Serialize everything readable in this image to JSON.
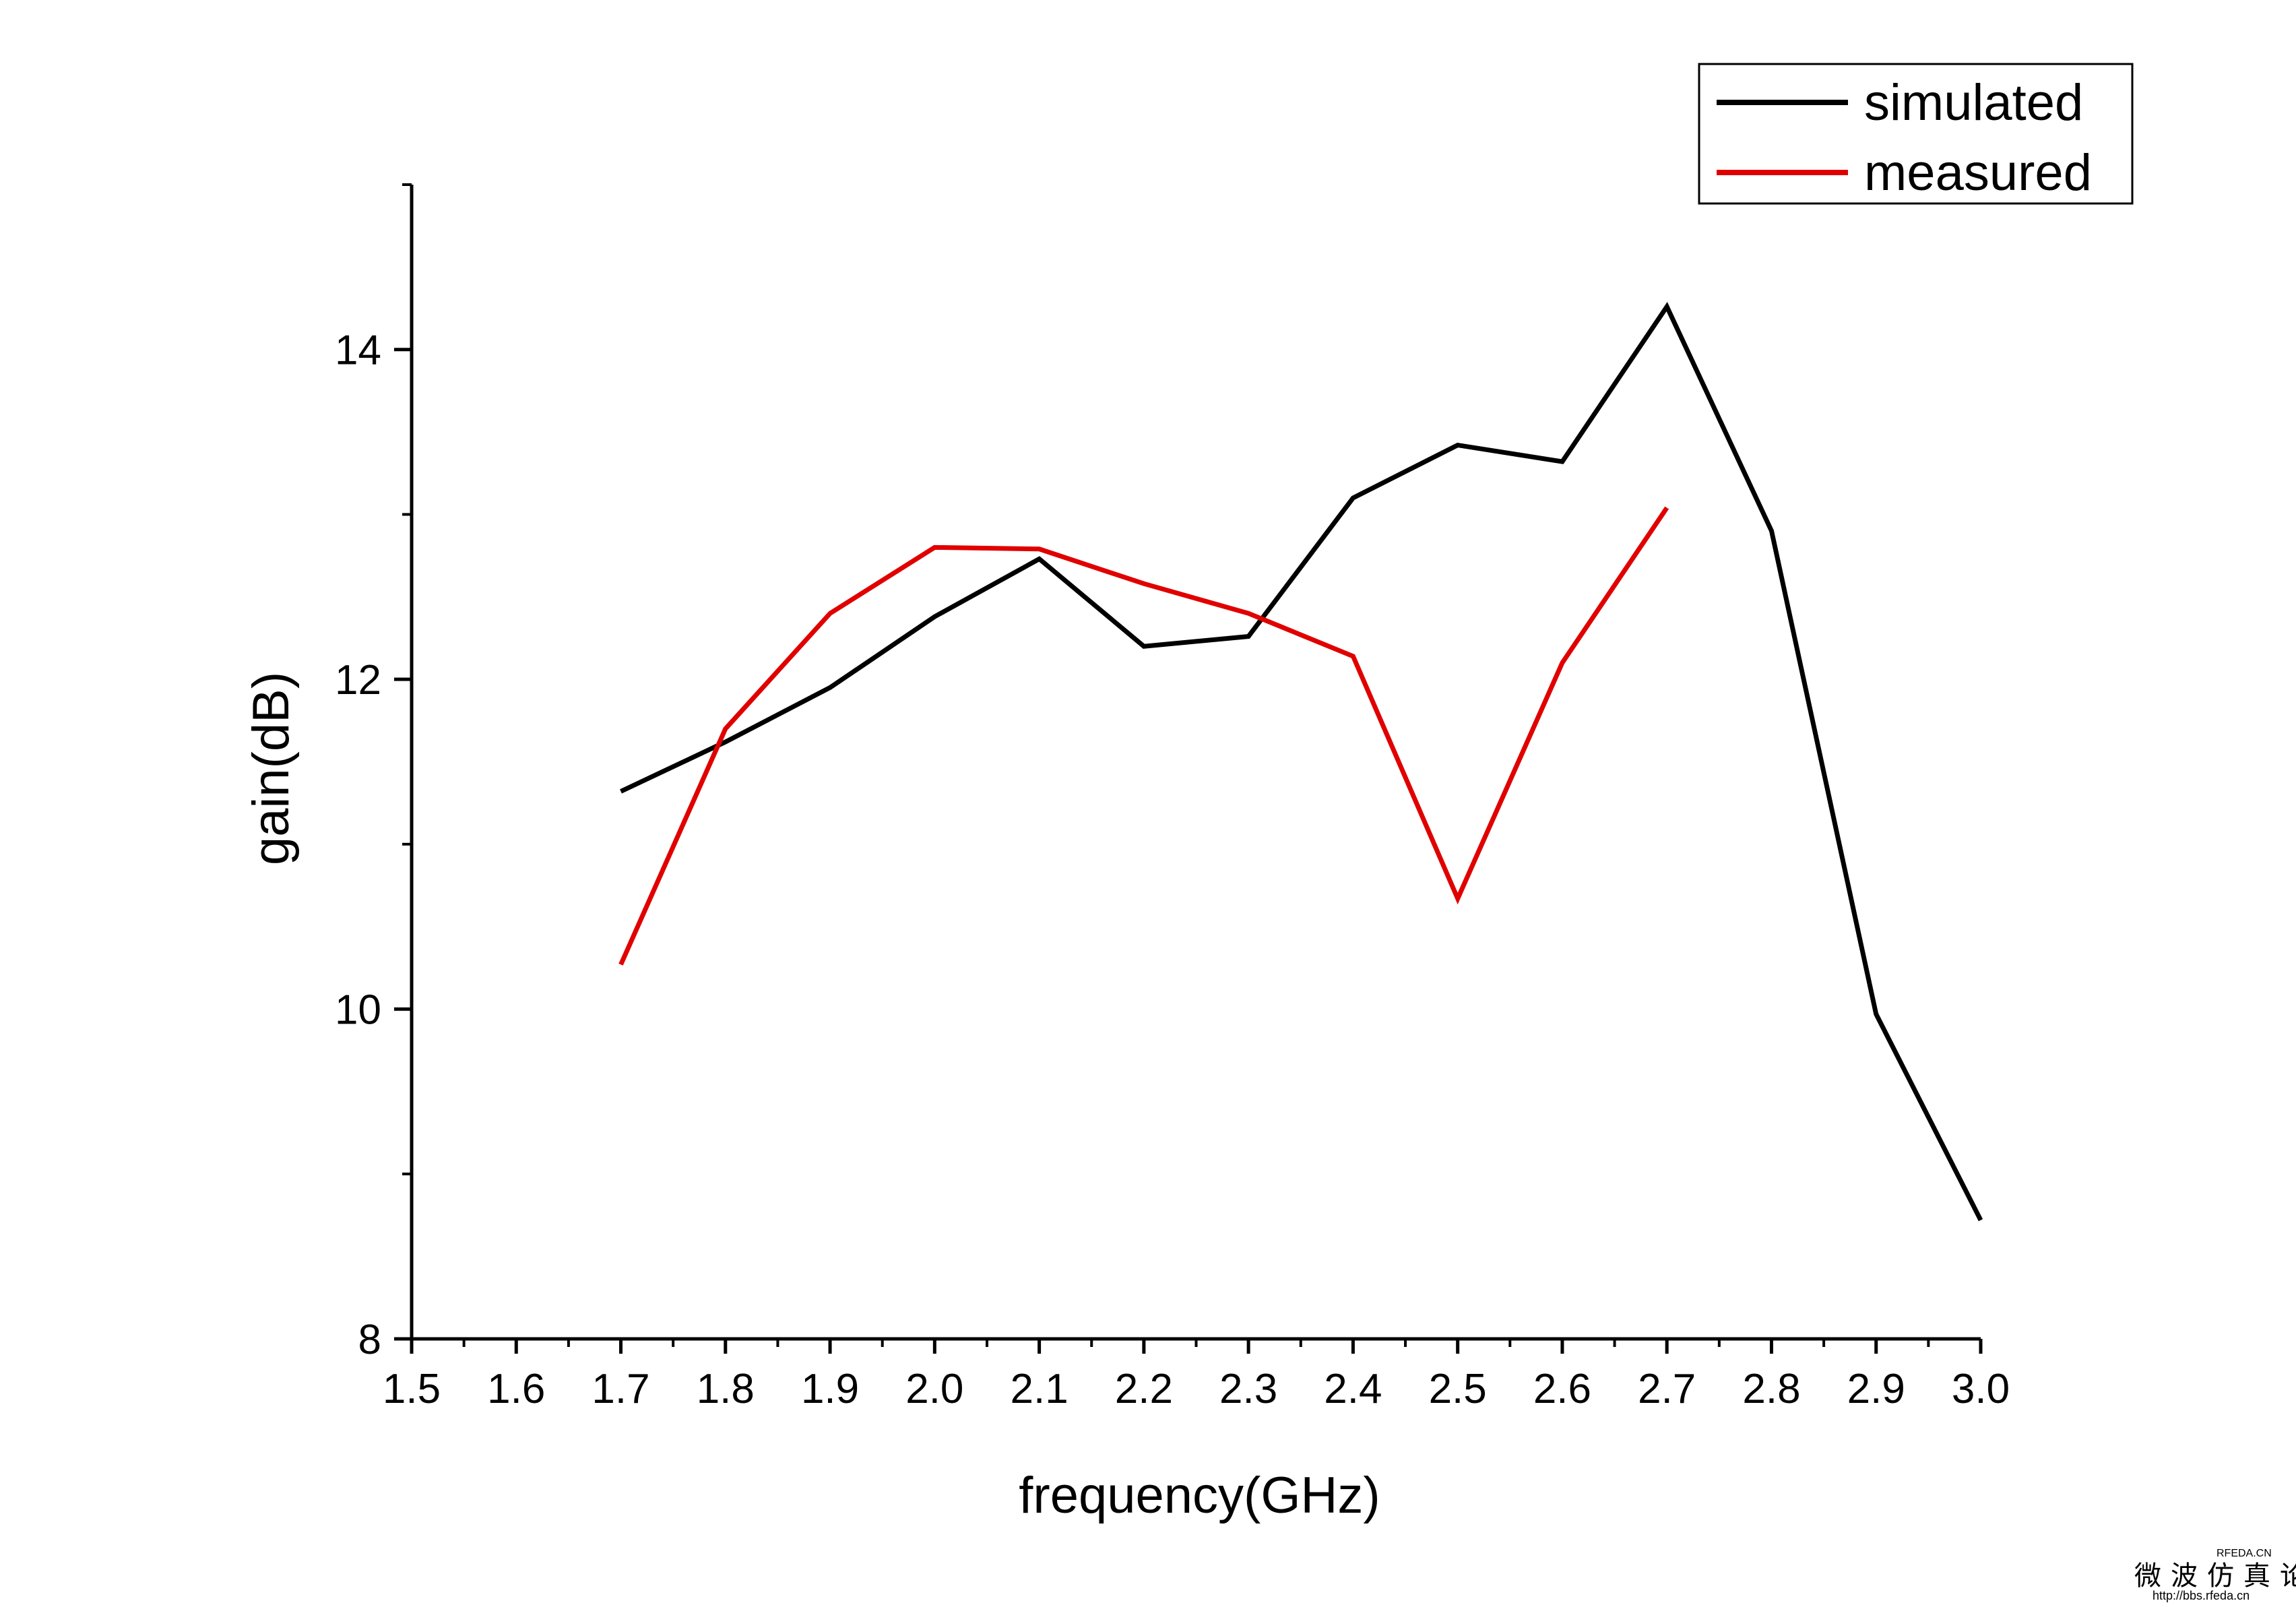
{
  "chart_data": {
    "type": "line",
    "title": "",
    "xlabel": "frequency(GHz)",
    "ylabel": "gain(dB)",
    "xlim": [
      1.5,
      3.0
    ],
    "ylim": [
      8,
      15
    ],
    "x_ticks": [
      "1.5",
      "1.6",
      "1.7",
      "1.8",
      "1.9",
      "2.0",
      "2.1",
      "2.2",
      "2.3",
      "2.4",
      "2.5",
      "2.6",
      "2.7",
      "2.8",
      "2.9",
      "3.0"
    ],
    "x_tick_values": [
      1.5,
      1.6,
      1.7,
      1.8,
      1.9,
      2.0,
      2.1,
      2.2,
      2.3,
      2.4,
      2.5,
      2.6,
      2.7,
      2.8,
      2.9,
      3.0
    ],
    "y_ticks": [
      "8",
      "10",
      "12",
      "14"
    ],
    "y_tick_values": [
      8,
      10,
      12,
      14
    ],
    "y_minor_tick_values": [
      9,
      11,
      13,
      15
    ],
    "grid": false,
    "legend_position": "top-right",
    "series": [
      {
        "name": "simulated",
        "color": "#000000",
        "x": [
          1.7,
          1.8,
          1.9,
          2.0,
          2.1,
          2.2,
          2.3,
          2.4,
          2.5,
          2.6,
          2.7,
          2.8,
          2.9,
          3.0
        ],
        "y": [
          11.32,
          11.62,
          11.95,
          12.38,
          12.73,
          12.2,
          12.26,
          13.1,
          13.42,
          13.32,
          14.26,
          12.9,
          9.97,
          8.72
        ]
      },
      {
        "name": "measured",
        "color": "#e00000",
        "x": [
          1.7,
          1.8,
          1.9,
          2.0,
          2.1,
          2.2,
          2.3,
          2.4,
          2.5,
          2.6,
          2.7
        ],
        "y": [
          10.27,
          11.7,
          12.4,
          12.8,
          12.79,
          12.58,
          12.4,
          12.14,
          10.67,
          12.1,
          13.04
        ]
      }
    ]
  },
  "watermark": {
    "line1": "微波仿真论坛",
    "line2": "http://bbs.rfeda.cn",
    "badge": "RFEDA.CN"
  }
}
